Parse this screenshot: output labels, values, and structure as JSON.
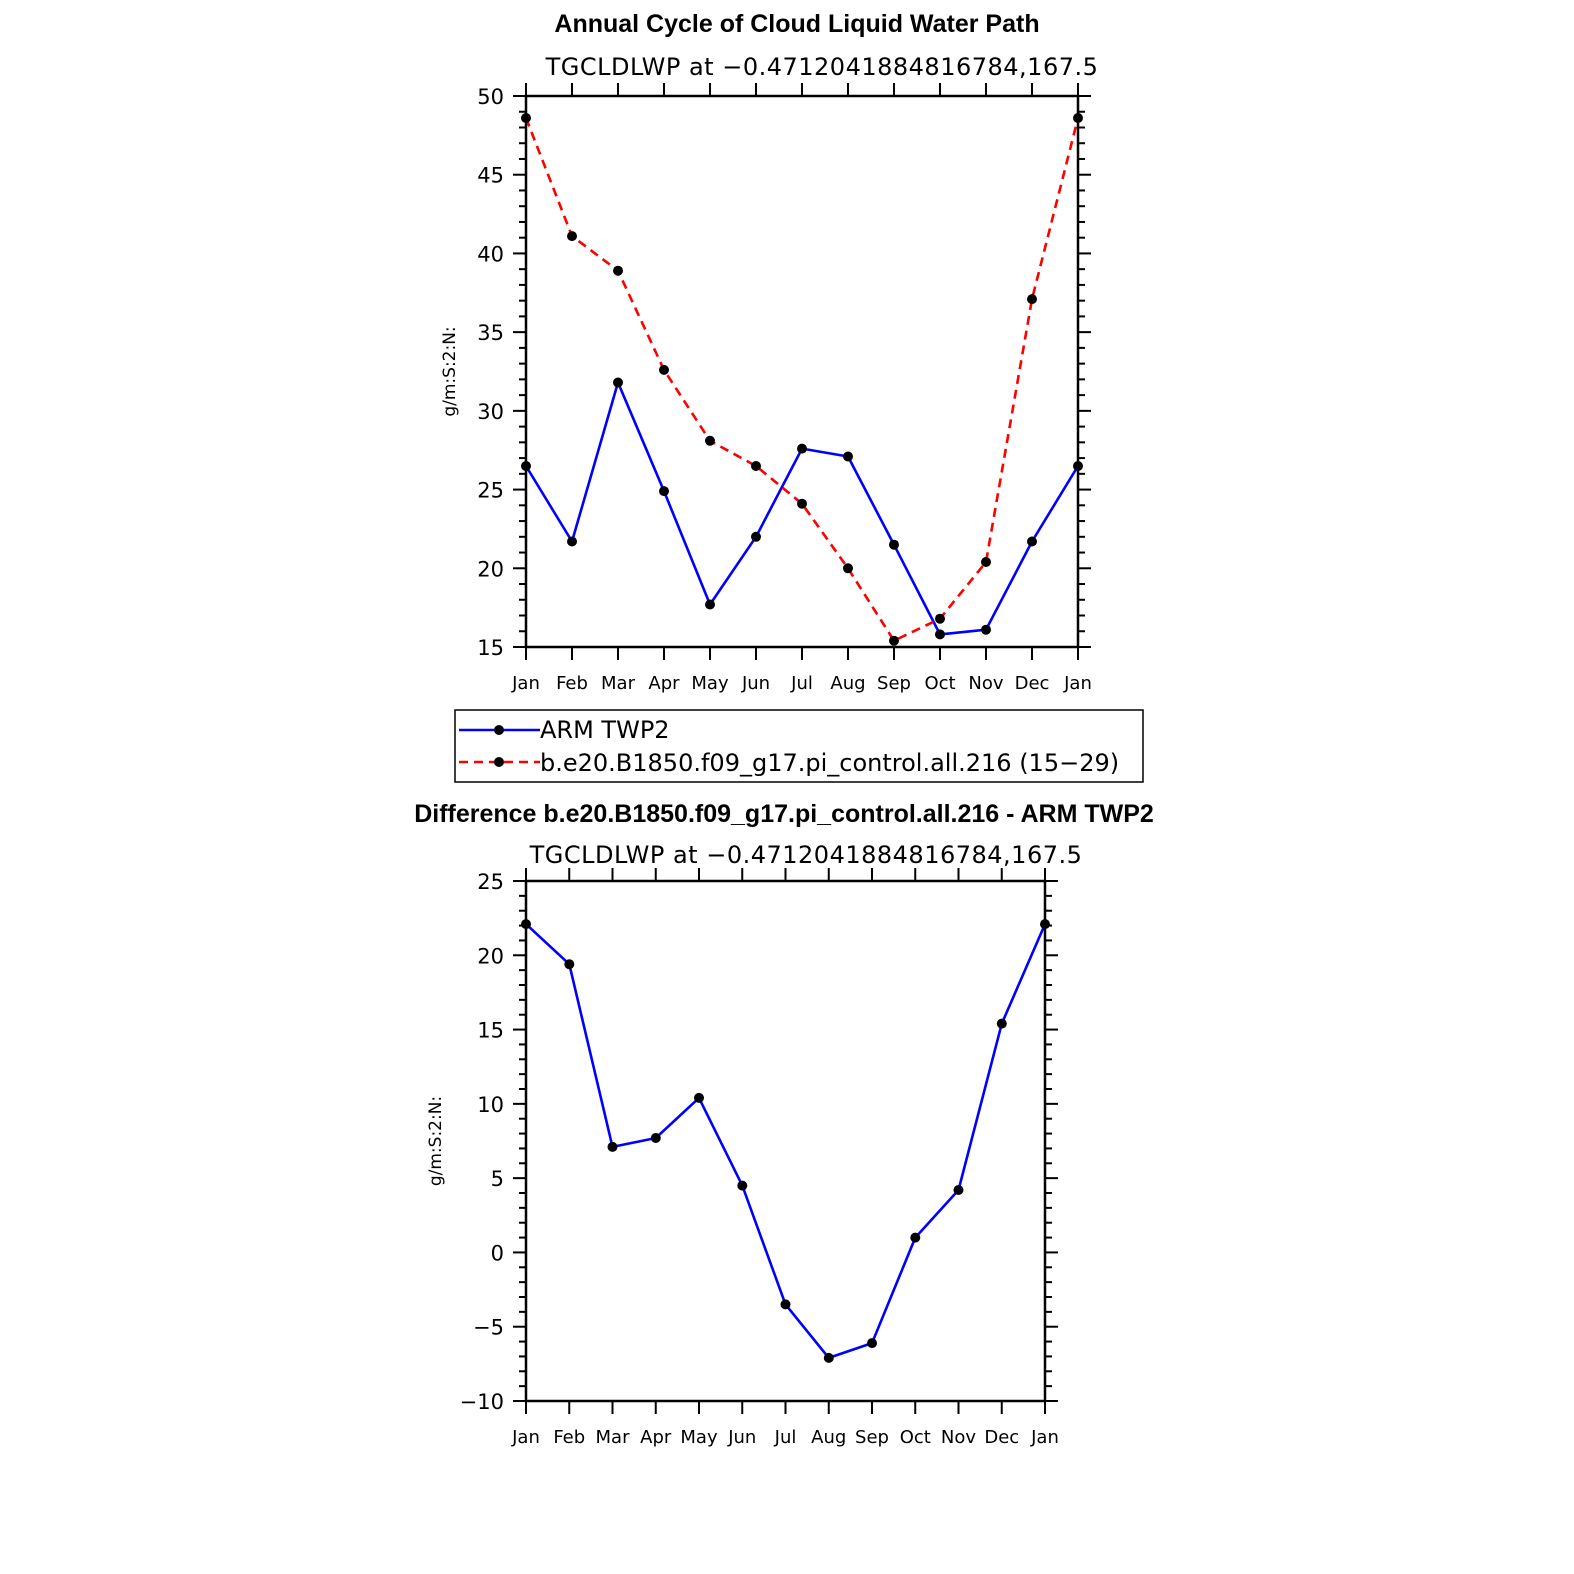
{
  "chart_data": [
    {
      "type": "line",
      "title": "Annual Cycle of Cloud Liquid Water Path",
      "subtitle": "TGCLDLWP at −0.4712041884816784,167.5",
      "xlabel": "",
      "ylabel": "g/m:S:2:N:",
      "categories": [
        "Jan",
        "Feb",
        "Mar",
        "Apr",
        "May",
        "Jun",
        "Jul",
        "Aug",
        "Sep",
        "Oct",
        "Nov",
        "Dec",
        "Jan"
      ],
      "ylim": [
        15,
        50
      ],
      "yticks": [
        "15",
        "20",
        "25",
        "30",
        "35",
        "40",
        "45",
        "50"
      ],
      "series": [
        {
          "name": "ARM TWP2",
          "color": "#0000ff",
          "dash": "solid",
          "values": [
            26.5,
            21.7,
            31.8,
            24.9,
            17.7,
            22.0,
            27.6,
            27.1,
            21.5,
            15.8,
            16.1,
            21.7,
            26.5
          ]
        },
        {
          "name": "b.e20.B1850.f09_g17.pi_control.all.216 (15−29)",
          "color": "#ff0000",
          "dash": "dashed",
          "values": [
            48.6,
            41.1,
            38.9,
            32.6,
            28.1,
            26.5,
            24.1,
            20.0,
            15.4,
            16.8,
            20.4,
            37.1,
            48.6
          ]
        }
      ]
    },
    {
      "type": "line",
      "title": "Difference b.e20.B1850.f09_g17.pi_control.all.216 - ARM TWP2",
      "subtitle": "TGCLDLWP at −0.4712041884816784,167.5",
      "xlabel": "",
      "ylabel": "g/m:S:2:N:",
      "categories": [
        "Jan",
        "Feb",
        "Mar",
        "Apr",
        "May",
        "Jun",
        "Jul",
        "Aug",
        "Sep",
        "Oct",
        "Nov",
        "Dec",
        "Jan"
      ],
      "ylim": [
        -10,
        25
      ],
      "yticks": [
        "−10",
        "−5",
        "0",
        "5",
        "10",
        "15",
        "20",
        "25"
      ],
      "series": [
        {
          "name": "Difference",
          "color": "#0000ff",
          "dash": "solid",
          "values": [
            22.1,
            19.4,
            7.1,
            7.7,
            10.4,
            4.5,
            -3.5,
            -7.1,
            -6.1,
            1.0,
            4.2,
            15.4,
            22.1
          ]
        }
      ]
    }
  ]
}
